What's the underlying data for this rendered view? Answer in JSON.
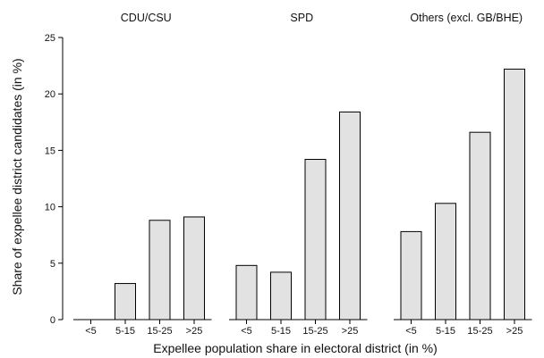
{
  "chart_data": {
    "type": "bar",
    "xlabel": "Expellee population share in electoral district (in %)",
    "ylabel": "Share of expellee district candidates (in %)",
    "ylim": [
      0,
      25
    ],
    "yticks": [
      0,
      5,
      10,
      15,
      20,
      25
    ],
    "categories": [
      "<5",
      "5-15",
      "15-25",
      ">25"
    ],
    "bar_color": "#e2e2e2",
    "edge_color": "#000000",
    "grid": false,
    "panels": [
      {
        "title": "CDU/CSU",
        "values": [
          0,
          3.2,
          8.8,
          9.1
        ]
      },
      {
        "title": "SPD",
        "values": [
          4.8,
          4.2,
          14.2,
          18.4
        ]
      },
      {
        "title": "Others (excl. GB/BHE)",
        "values": [
          7.8,
          10.3,
          16.6,
          22.2
        ]
      }
    ]
  }
}
